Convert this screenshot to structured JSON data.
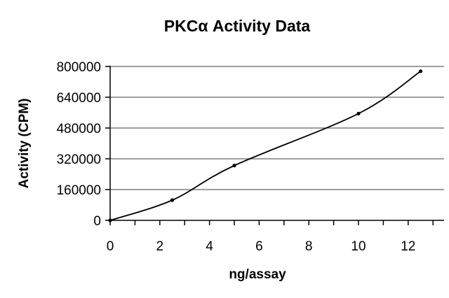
{
  "chart_data": {
    "type": "line",
    "title": "PKCα Activity Data",
    "xlabel": "ng/assay",
    "ylabel": "Activity (CPM)",
    "xlim": [
      0,
      13.5
    ],
    "ylim": [
      0,
      800000
    ],
    "x_ticks": [
      "0",
      "2",
      "4",
      "6",
      "8",
      "10",
      "12"
    ],
    "y_ticks": [
      "0",
      "160000",
      "320000",
      "480000",
      "640000",
      "800000"
    ],
    "grid": "horizontal",
    "legend": "none",
    "series": [
      {
        "color": "#000000",
        "points": [
          {
            "x": 0,
            "y": 0
          },
          {
            "x": 2.5,
            "y": 105000
          },
          {
            "x": 5,
            "y": 285000
          },
          {
            "x": 10,
            "y": 555000
          },
          {
            "x": 12.5,
            "y": 775000
          }
        ]
      }
    ]
  }
}
